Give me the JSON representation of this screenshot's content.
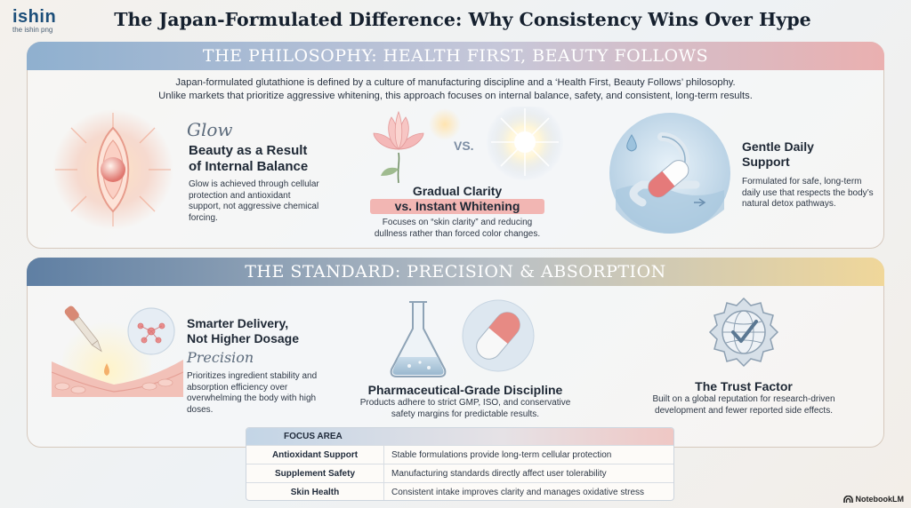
{
  "header": {
    "logo": "ishin",
    "logo_sub": "the ishin png",
    "title": "The Japan-Formulated Difference: Why Consistency Wins Over Hype"
  },
  "philosophy": {
    "banner": "THE PHILOSOPHY: HEALTH FIRST, BEAUTY FOLLOWS",
    "intro_line1": "Japan-formulated glutathione is defined by a culture of manufacturing discipline and a ‘Health First, Beauty Follows’ philosophy.",
    "intro_line2": "Unlike markets that prioritize aggressive whitening, this approach focuses on internal balance, safety, and consistent, long-term results.",
    "glow": {
      "script": "Glow",
      "heading_line1": "Beauty as a Result",
      "heading_line2": "of Internal Balance",
      "body": "Glow is achieved through cellular protection and antioxidant support, not aggressive chemical forcing."
    },
    "clarity": {
      "vs": "VS.",
      "heading_line1": "Gradual Clarity",
      "heading_line2": "vs. Instant Whitening",
      "body": "Focuses on “skin clarity” and reducing dullness rather than forced color changes."
    },
    "daily": {
      "heading_line1": "Gentle Daily",
      "heading_line2": "Support",
      "body": "Formulated for safe, long-term daily use that respects the body’s natural detox pathways."
    }
  },
  "standard": {
    "banner": "THE STANDARD: PRECISION & ABSORPTION",
    "delivery": {
      "heading_line1": "Smarter Delivery,",
      "heading_line2": "Not Higher Dosage",
      "script": "Precision",
      "body": "Prioritizes ingredient stability and absorption efficiency over overwhelming the body with high doses."
    },
    "pharma": {
      "heading": "Pharmaceutical-Grade Discipline",
      "body": "Products adhere to strict GMP, ISO, and conservative safety margins for predictable results."
    },
    "trust": {
      "heading": "The Trust Factor",
      "body": "Built on a global reputation for research-driven development and fewer reported side effects."
    }
  },
  "table": {
    "header": "FOCUS AREA",
    "rows": [
      {
        "area": "Antioxidant Support",
        "detail": "Stable formulations provide long-term cellular protection"
      },
      {
        "area": "Supplement Safety",
        "detail": "Manufacturing standards directly affect user tolerability"
      },
      {
        "area": "Skin Health",
        "detail": "Consistent intake improves clarity and manages oxidative stress"
      }
    ]
  },
  "badge": "NotebookLM",
  "colors": {
    "blue": "#1d4f7a",
    "pink": "#eab0b0",
    "gold": "#f0d79a",
    "slate": "#5f7fa3"
  }
}
